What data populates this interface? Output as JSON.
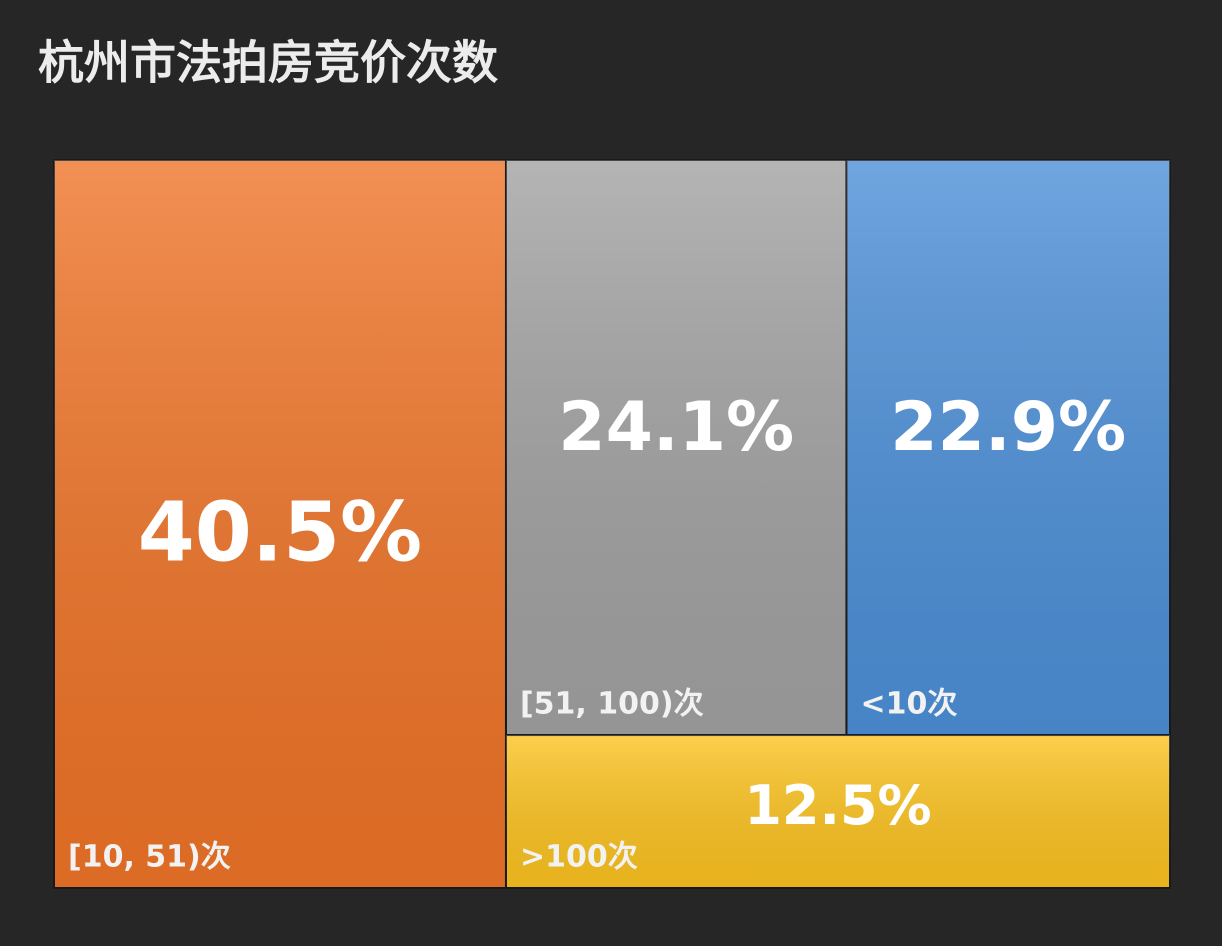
{
  "chart_data": {
    "type": "treemap",
    "title": "杭州市法拍房竞价次数",
    "categories": [
      "[10, 51)次",
      "[51, 100)次",
      "<10次",
      ">100次"
    ],
    "values": [
      40.5,
      24.1,
      22.9,
      12.5
    ],
    "value_labels": [
      "40.5%",
      "24.1%",
      "22.9%",
      "12.5%"
    ],
    "colors": [
      "#ef7428",
      "#a2a2a2",
      "#4d90d8",
      "#fcc320"
    ]
  }
}
